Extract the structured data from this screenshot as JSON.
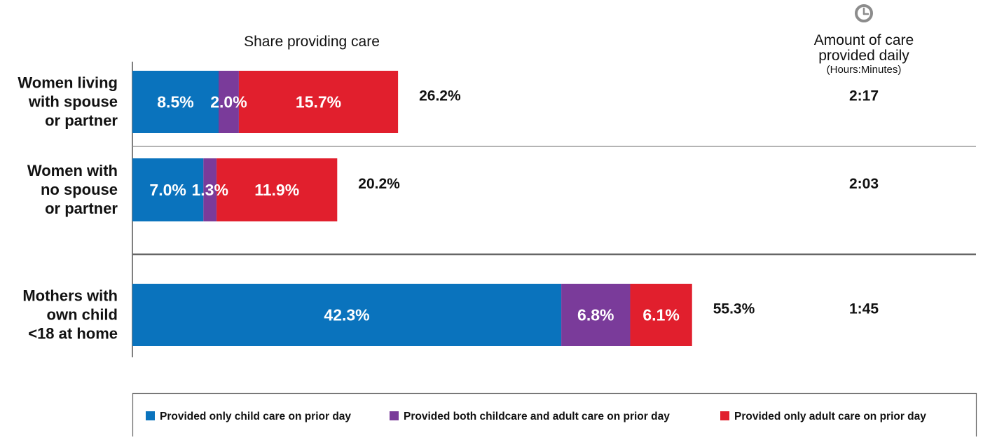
{
  "colors": {
    "child_only": "#0a73bd",
    "both": "#7a3b9a",
    "adult_only": "#e11f2d",
    "text": "#111111",
    "axis": "#555555",
    "divider": "#888888",
    "clock": "#8c8c8c"
  },
  "header": {
    "share_title": "Share providing care",
    "amount_title_line1": "Amount of care",
    "amount_title_line2": "provided daily",
    "amount_units": "(Hours:Minutes)",
    "clock_icon": "clock-icon"
  },
  "chart_data": {
    "type": "bar",
    "orientation": "horizontal",
    "stacked": true,
    "title": "Share providing care",
    "categories": [
      [
        "Women living",
        "with spouse",
        "or partner"
      ],
      [
        "Women with",
        "no spouse",
        "or partner"
      ],
      [
        "Mothers with",
        "own child",
        "<18 at home"
      ]
    ],
    "series": [
      {
        "name": "Provided only child care on prior day",
        "values": [
          8.5,
          7.0,
          42.3
        ],
        "labels": [
          "8.5%",
          "7.0%",
          "42.3%"
        ]
      },
      {
        "name": "Provided both childcare and adult care on prior day",
        "values": [
          2.0,
          1.3,
          6.8
        ],
        "labels": [
          "2.0%",
          "1.3%",
          "6.8%"
        ]
      },
      {
        "name": "Provided only adult care on prior day",
        "values": [
          15.7,
          11.9,
          6.1
        ],
        "labels": [
          "15.7%",
          "11.9%",
          "6.1%"
        ]
      }
    ],
    "totals": [
      "26.2%",
      "20.2%",
      "55.3%"
    ],
    "daily_amount": [
      "2:17",
      "2:03",
      "1:45"
    ],
    "legend_position": "bottom",
    "grid": false
  }
}
